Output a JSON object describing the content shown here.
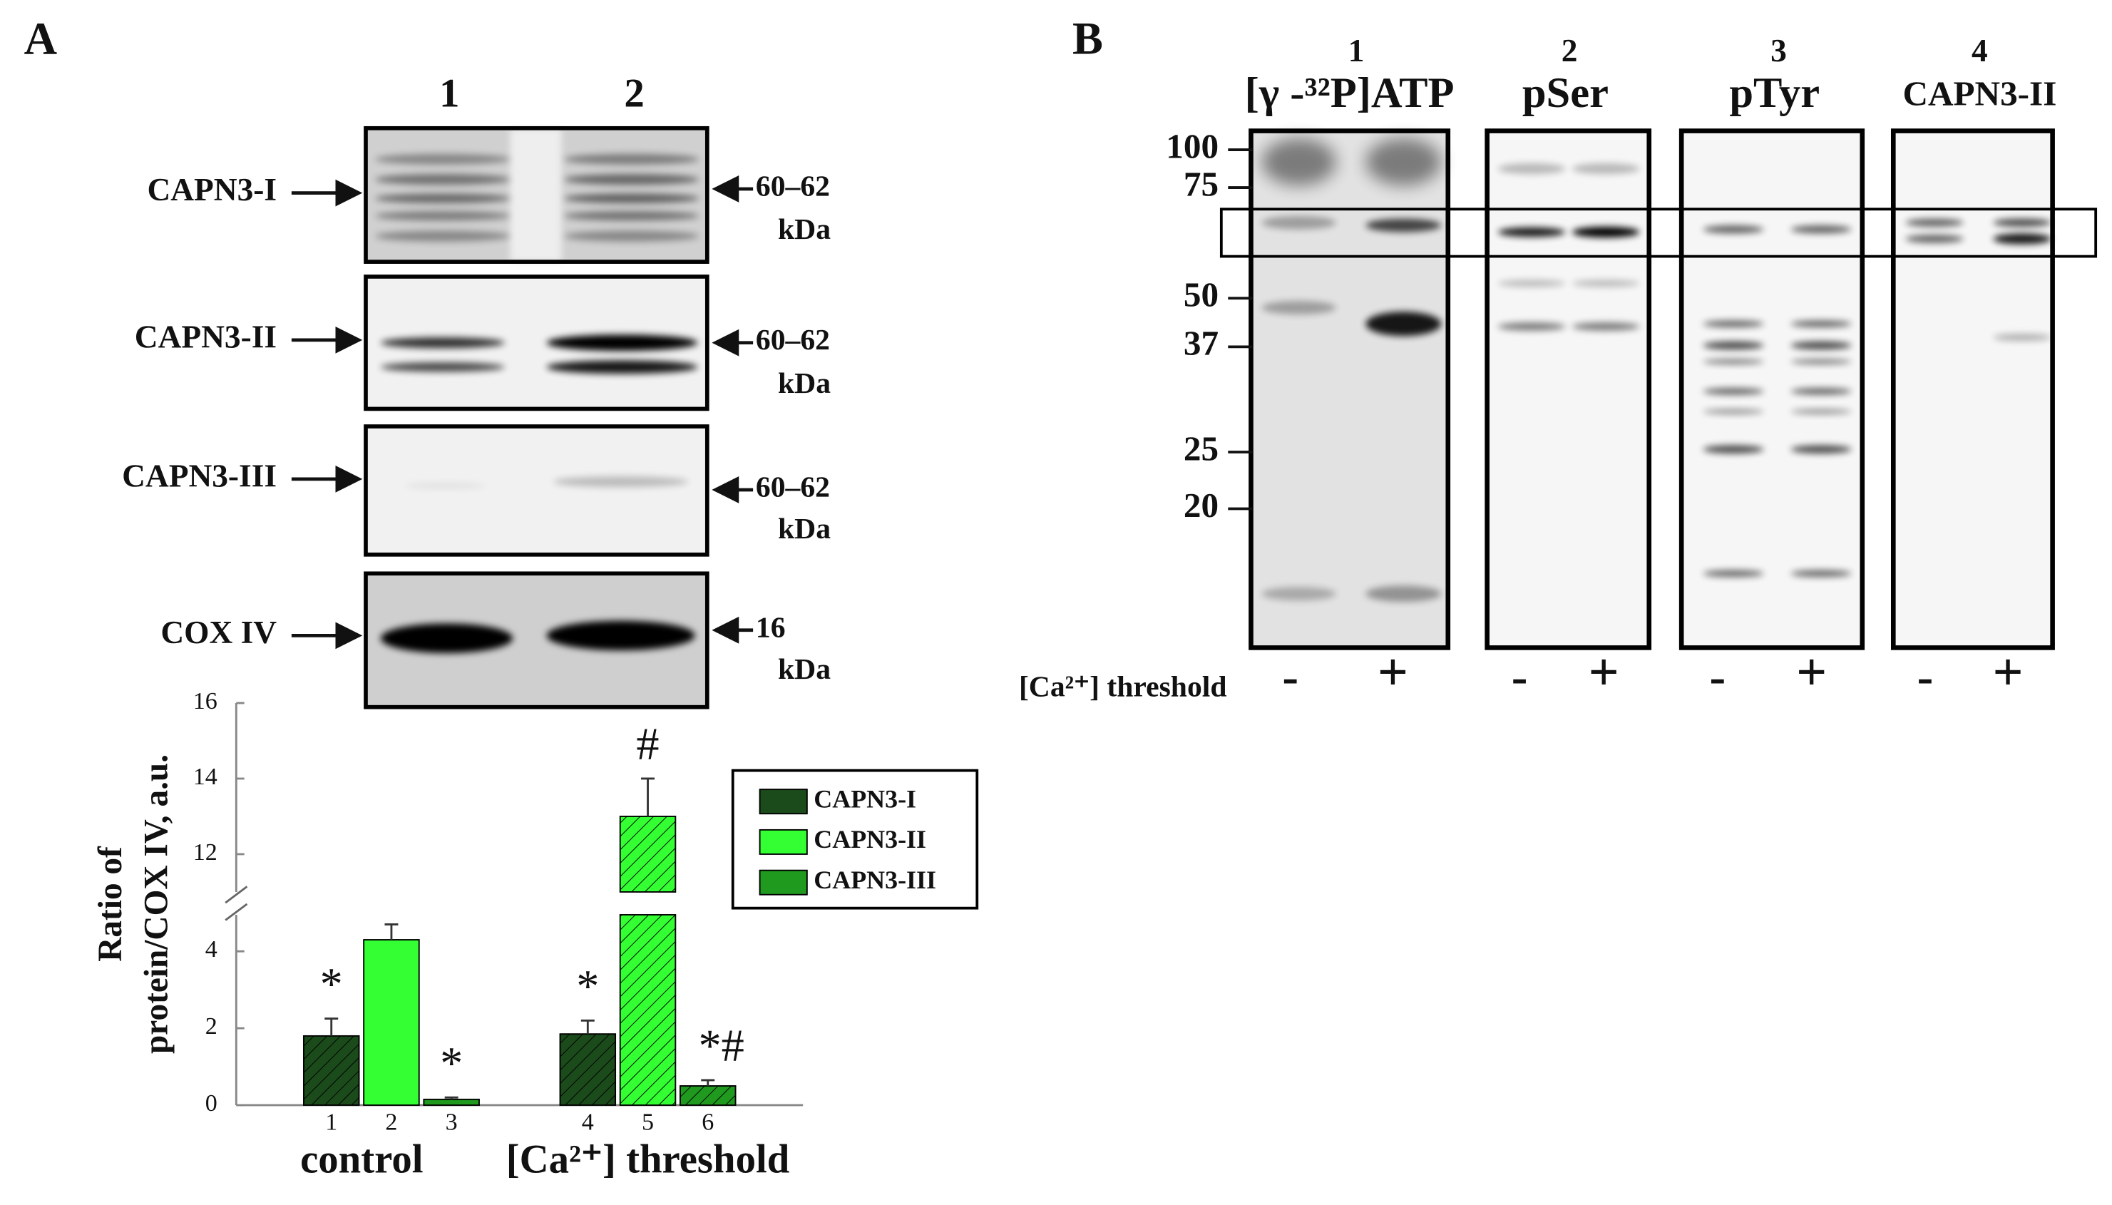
{
  "panel_a": {
    "label": "A",
    "lane_numbers": [
      "1",
      "2"
    ],
    "blots": [
      {
        "protein": "CAPN3-I",
        "size": "60–62",
        "unit": "kDa"
      },
      {
        "protein": "CAPN3-II",
        "size": "60–62",
        "unit": "kDa"
      },
      {
        "protein": "CAPN3-III",
        "size": "60–62",
        "unit": "kDa"
      },
      {
        "protein": "COX IV",
        "size": "16",
        "unit": "kDa"
      }
    ]
  },
  "chart_data": {
    "type": "bar",
    "y_label": [
      "Ratio of",
      "protein/COX IV, a.u."
    ],
    "categories": [
      "control",
      "[Ca²⁺] threshold"
    ],
    "bar_labels": [
      [
        "1",
        "2",
        "3"
      ],
      [
        "4",
        "5",
        "6"
      ]
    ],
    "series": [
      {
        "name": "CAPN3-I",
        "color": "#1b4a1b",
        "values": [
          1.8,
          1.85
        ],
        "errors": [
          0.45,
          0.35
        ],
        "annotations": [
          "*",
          "*"
        ]
      },
      {
        "name": "CAPN3-II",
        "color": "#33ff33",
        "values": [
          4.3,
          13.0
        ],
        "errors": [
          0.4,
          1.0
        ],
        "annotations": [
          null,
          "#"
        ]
      },
      {
        "name": "CAPN3-III",
        "color": "#1f9a1f",
        "values": [
          0.15,
          0.5
        ],
        "errors": [
          0.05,
          0.15
        ],
        "annotations": [
          "*",
          "*#"
        ]
      }
    ],
    "ylim": [
      0,
      16
    ],
    "y_break": [
      4.95,
      11
    ],
    "yticks": [
      0,
      2,
      4,
      12,
      14,
      16
    ],
    "legend": "upper right"
  },
  "panel_b": {
    "label": "B",
    "lanes": [
      {
        "number": "1",
        "title": "[γ -³²P]ATP"
      },
      {
        "number": "2",
        "title": "pSer"
      },
      {
        "number": "3",
        "title": "pTyr"
      },
      {
        "number": "4",
        "title": "CAPN3-II"
      }
    ],
    "marker_weights": [
      "100",
      "75",
      "50",
      "37",
      "25",
      "20"
    ],
    "condition": "[Ca²⁺] threshold",
    "signs": [
      "-",
      "+"
    ]
  }
}
